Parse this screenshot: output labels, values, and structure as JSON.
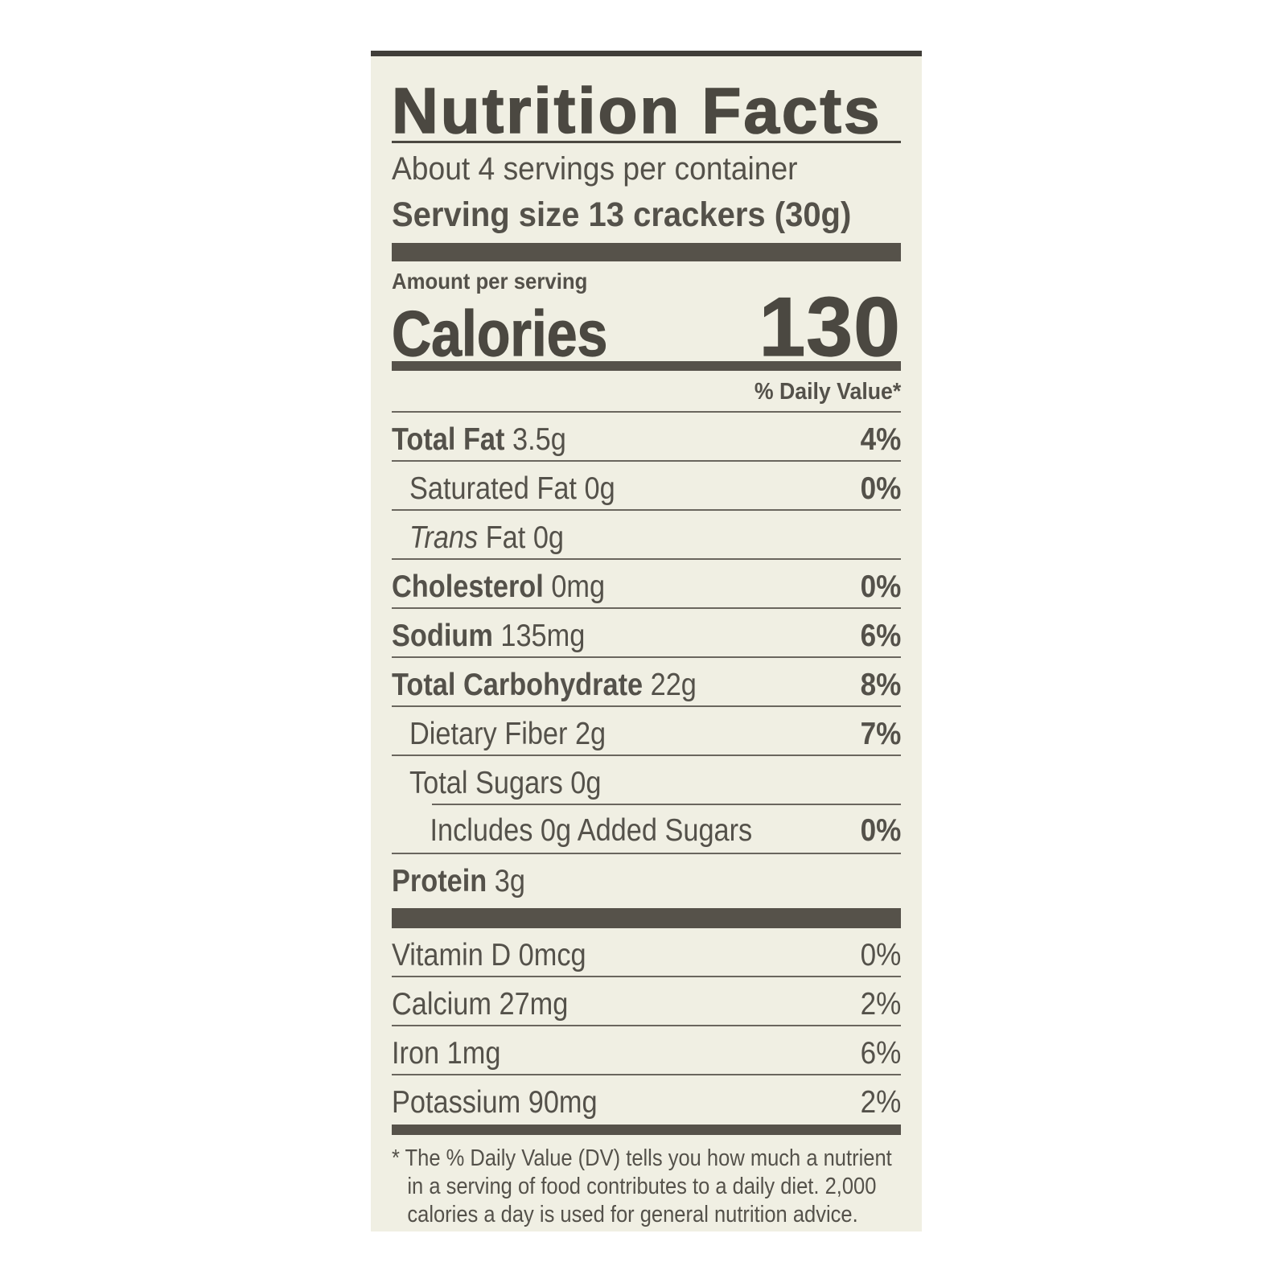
{
  "label": {
    "title": "Nutrition Facts",
    "servings_per_container": "About 4 servings per container",
    "serving_size": "Serving size 13 crackers (30g)",
    "amount_per_serving": "Amount per serving",
    "calories_label": "Calories",
    "calories_value": "130",
    "daily_value_header": "% Daily Value*",
    "rows": [
      {
        "label_bold": "Total Fat",
        "label_italic": "",
        "label_regular": " 3.5g",
        "dv": "4%"
      },
      {
        "label_bold": "",
        "label_italic": "",
        "label_regular": "Saturated Fat 0g",
        "dv": "0%"
      },
      {
        "label_bold": "",
        "label_italic": "Trans",
        "label_regular": " Fat 0g",
        "dv": ""
      },
      {
        "label_bold": "Cholesterol",
        "label_italic": "",
        "label_regular": " 0mg",
        "dv": "0%"
      },
      {
        "label_bold": "Sodium",
        "label_italic": "",
        "label_regular": " 135mg",
        "dv": "6%"
      },
      {
        "label_bold": "Total Carbohydrate",
        "label_italic": "",
        "label_regular": " 22g",
        "dv": "8%"
      },
      {
        "label_bold": "",
        "label_italic": "",
        "label_regular": "Dietary Fiber 2g",
        "dv": "7%"
      },
      {
        "label_bold": "",
        "label_italic": "",
        "label_regular": "Total Sugars 0g",
        "dv": ""
      },
      {
        "label_bold": "",
        "label_italic": "",
        "label_regular": "Includes 0g Added Sugars",
        "dv": "0%"
      },
      {
        "label_bold": "Protein",
        "label_italic": "",
        "label_regular": " 3g",
        "dv": ""
      }
    ],
    "vitamins": [
      {
        "name": "Vitamin D 0mcg",
        "dv": "0%"
      },
      {
        "name": "Calcium 27mg",
        "dv": "2%"
      },
      {
        "name": "Iron 1mg",
        "dv": "6%"
      },
      {
        "name": "Potassium 90mg",
        "dv": "2%"
      }
    ],
    "footnote": "* The % Daily Value (DV) tells you how much a nutrient in a serving of food contributes to a daily diet. 2,000 calories a day is used for general nutrition advice."
  },
  "colors": {
    "panel_bg": "#f0efe3",
    "ink": "#54514a",
    "ink_strong": "#4b4841",
    "bar": "#56524a",
    "hairline": "#6a665e"
  }
}
